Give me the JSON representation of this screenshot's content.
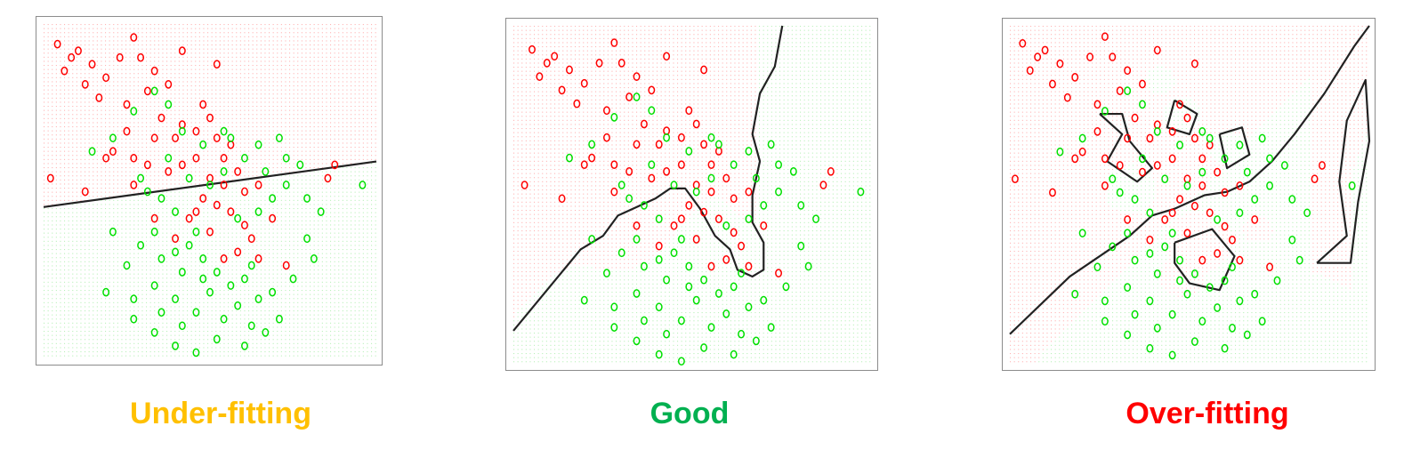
{
  "colors": {
    "red": "#ff0000",
    "green": "#00e000",
    "boundary": "#222222"
  },
  "panels": [
    {
      "label": "Under-fitting",
      "label_color": "#ffc000"
    },
    {
      "label": "Good",
      "label_color": "#00b050"
    },
    {
      "label": "Over-fitting",
      "label_color": "#ff0000"
    }
  ],
  "chart_data": {
    "type": "scatter",
    "x": [
      -2.2,
      2.6
    ],
    "y": [
      -2.4,
      2.6
    ],
    "series": [
      {
        "class": "red",
        "points": [
          [
            -2.0,
            2.3
          ],
          [
            -1.7,
            2.2
          ],
          [
            -1.5,
            2.0
          ],
          [
            -1.9,
            1.9
          ],
          [
            -1.6,
            1.7
          ],
          [
            -1.3,
            1.8
          ],
          [
            -1.1,
            2.1
          ],
          [
            -0.9,
            2.4
          ],
          [
            -0.8,
            2.1
          ],
          [
            -0.6,
            1.9
          ],
          [
            -0.7,
            1.6
          ],
          [
            -0.4,
            1.7
          ],
          [
            -0.2,
            2.2
          ],
          [
            0.3,
            2.0
          ],
          [
            -1.4,
            1.5
          ],
          [
            -1.0,
            1.4
          ],
          [
            -0.5,
            1.2
          ],
          [
            -0.2,
            1.1
          ],
          [
            0.0,
            1.0
          ],
          [
            0.3,
            0.9
          ],
          [
            0.5,
            0.8
          ],
          [
            0.2,
            1.2
          ],
          [
            -1.2,
            0.7
          ],
          [
            -0.9,
            0.6
          ],
          [
            -0.7,
            0.5
          ],
          [
            -0.4,
            0.4
          ],
          [
            -0.2,
            0.5
          ],
          [
            0.0,
            0.6
          ],
          [
            0.2,
            0.3
          ],
          [
            0.4,
            0.2
          ],
          [
            0.6,
            0.4
          ],
          [
            0.7,
            0.1
          ],
          [
            0.9,
            0.2
          ],
          [
            0.5,
            -0.2
          ],
          [
            0.3,
            -0.1
          ],
          [
            0.1,
            0.0
          ],
          [
            -0.1,
            -0.3
          ],
          [
            0.2,
            -0.5
          ],
          [
            0.6,
            -0.8
          ],
          [
            0.4,
            -0.9
          ],
          [
            0.8,
            -0.6
          ],
          [
            1.1,
            -0.3
          ],
          [
            1.3,
            -1.0
          ],
          [
            2.0,
            0.5
          ],
          [
            1.9,
            0.3
          ],
          [
            -2.1,
            0.3
          ],
          [
            -1.6,
            0.1
          ],
          [
            -1.3,
            0.6
          ],
          [
            -0.9,
            0.2
          ],
          [
            -0.6,
            -0.3
          ],
          [
            -0.3,
            -0.6
          ],
          [
            0.0,
            -0.2
          ],
          [
            0.9,
            -0.9
          ],
          [
            0.7,
            -0.4
          ],
          [
            -1.0,
            1.0
          ],
          [
            -0.6,
            0.9
          ],
          [
            0.1,
            1.4
          ],
          [
            0.4,
            0.6
          ],
          [
            -0.3,
            0.9
          ],
          [
            -1.8,
            2.1
          ]
        ]
      },
      {
        "class": "green",
        "points": [
          [
            -0.9,
            1.3
          ],
          [
            -0.6,
            1.6
          ],
          [
            -0.4,
            1.4
          ],
          [
            -0.2,
            1.0
          ],
          [
            0.1,
            0.8
          ],
          [
            0.4,
            1.0
          ],
          [
            0.7,
            0.6
          ],
          [
            0.9,
            0.8
          ],
          [
            1.2,
            0.9
          ],
          [
            1.0,
            0.4
          ],
          [
            1.3,
            0.2
          ],
          [
            1.6,
            0.0
          ],
          [
            1.8,
            -0.2
          ],
          [
            2.4,
            0.2
          ],
          [
            -1.2,
            0.9
          ],
          [
            -1.5,
            0.7
          ],
          [
            -0.8,
            0.3
          ],
          [
            -0.5,
            0.0
          ],
          [
            -0.3,
            -0.2
          ],
          [
            -0.6,
            -0.5
          ],
          [
            -0.8,
            -0.7
          ],
          [
            -0.5,
            -0.9
          ],
          [
            -0.3,
            -0.8
          ],
          [
            -0.1,
            -0.7
          ],
          [
            0.1,
            -0.9
          ],
          [
            0.3,
            -1.1
          ],
          [
            0.5,
            -1.3
          ],
          [
            0.7,
            -1.2
          ],
          [
            0.9,
            -1.5
          ],
          [
            1.1,
            -1.4
          ],
          [
            -1.2,
            -0.5
          ],
          [
            -1.0,
            -1.0
          ],
          [
            -1.3,
            -1.4
          ],
          [
            -0.9,
            -1.5
          ],
          [
            -0.6,
            -1.3
          ],
          [
            -0.3,
            -1.5
          ],
          [
            -0.2,
            -1.9
          ],
          [
            0.0,
            -1.7
          ],
          [
            0.2,
            -1.4
          ],
          [
            0.4,
            -1.8
          ],
          [
            0.6,
            -1.6
          ],
          [
            0.8,
            -1.9
          ],
          [
            1.0,
            -2.0
          ],
          [
            0.7,
            -2.2
          ],
          [
            0.3,
            -2.1
          ],
          [
            0.0,
            -2.3
          ],
          [
            -0.3,
            -2.2
          ],
          [
            -0.6,
            -2.0
          ],
          [
            -0.9,
            -1.8
          ],
          [
            1.2,
            -1.8
          ],
          [
            1.4,
            -1.2
          ],
          [
            1.6,
            -0.6
          ],
          [
            0.2,
            0.2
          ],
          [
            0.4,
            0.4
          ],
          [
            -0.1,
            0.3
          ],
          [
            -0.4,
            0.6
          ],
          [
            0.9,
            -0.2
          ],
          [
            1.1,
            0.0
          ],
          [
            1.5,
            0.5
          ],
          [
            -0.2,
            -1.1
          ],
          [
            0.6,
            -0.3
          ],
          [
            0.0,
            -0.5
          ],
          [
            1.3,
            0.6
          ],
          [
            0.5,
            0.9
          ],
          [
            -0.7,
            0.1
          ],
          [
            0.8,
            -1.0
          ],
          [
            0.1,
            -1.2
          ],
          [
            -0.5,
            -1.7
          ],
          [
            1.7,
            -0.9
          ]
        ]
      }
    ]
  }
}
